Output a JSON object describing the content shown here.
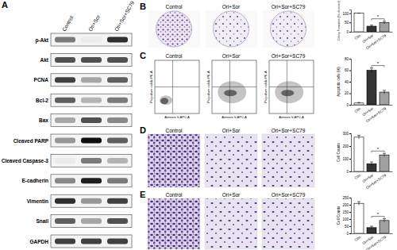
{
  "blot": {
    "label": "A",
    "columns": [
      "Control",
      "Ori+Sor",
      "Ori+Sor+SC79"
    ],
    "rows": [
      {
        "label": "p-Akt",
        "bands": [
          0.6,
          0.15,
          0.85
        ]
      },
      {
        "label": "Akt",
        "bands": [
          0.75,
          0.75,
          0.75
        ]
      },
      {
        "label": "PCNA",
        "bands": [
          0.8,
          0.45,
          0.7
        ]
      },
      {
        "label": "Bcl-2",
        "bands": [
          0.7,
          0.4,
          0.6
        ]
      },
      {
        "label": "Bax",
        "bands": [
          0.45,
          0.75,
          0.55
        ]
      },
      {
        "label": "Cleaved PARP",
        "bands": [
          0.5,
          0.95,
          0.7
        ]
      },
      {
        "label": "Cleaved Caspase-3",
        "bands": [
          0.15,
          0.6,
          0.4
        ]
      },
      {
        "label": "E-cadherin",
        "bands": [
          0.55,
          0.9,
          0.6
        ]
      },
      {
        "label": "Vimentin",
        "bands": [
          0.85,
          0.5,
          0.8
        ]
      },
      {
        "label": "Snail",
        "bands": [
          0.7,
          0.45,
          0.75
        ]
      },
      {
        "label": "GAPDH",
        "bands": [
          0.8,
          0.8,
          0.8
        ]
      }
    ]
  },
  "colony": {
    "label": "B",
    "titles": [
      "Control",
      "Ori+Sor",
      "Ori+Sor+SC79"
    ]
  },
  "flow": {
    "label": "C",
    "titles": [
      "Control",
      "Ori+Sor",
      "Ori+Sor+SC79"
    ],
    "x_label": "Annexin V-APC-A",
    "y_label": "Propidium iodide PE-A"
  },
  "migration": {
    "label": "D",
    "titles": [
      "Control",
      "Ori+Sor",
      "Ori+Sor+SC79"
    ]
  },
  "invasion": {
    "label": "E",
    "titles": [
      "Control",
      "Ori+Sor",
      "Ori+Sor+SC79"
    ]
  },
  "chart_data": [
    {
      "type": "bar",
      "y_label": "Colony Formation (% of control)",
      "categories": [
        "Con",
        "Ori+Sor",
        "Ori+Sor+SC79"
      ],
      "values": [
        100,
        30,
        50
      ],
      "errors": [
        0,
        6,
        7
      ],
      "colors": [
        "#ffffff",
        "#333333",
        "#a0a0a0"
      ],
      "ylim": [
        0,
        120
      ],
      "yticks": [
        0,
        50,
        100
      ],
      "annotation": "*"
    },
    {
      "type": "bar",
      "y_label": "Apoptotic cells (%)",
      "categories": [
        "Con",
        "Ori+Sor",
        "Ori+Sor+SC79"
      ],
      "values": [
        3,
        60,
        22
      ],
      "errors": [
        1,
        4,
        3
      ],
      "colors": [
        "#ffffff",
        "#333333",
        "#a0a0a0"
      ],
      "ylim": [
        0,
        80
      ],
      "yticks": [
        0,
        20,
        40,
        60,
        80
      ],
      "annotation": "*"
    },
    {
      "type": "bar",
      "y_label": "Cell Counts",
      "categories": [
        "Con",
        "Ori+Sor",
        "Ori+Sor+SC79"
      ],
      "values": [
        270,
        60,
        130
      ],
      "errors": [
        15,
        15,
        12
      ],
      "colors": [
        "#ffffff",
        "#333333",
        "#a0a0a0"
      ],
      "ylim": [
        0,
        300
      ],
      "yticks": [
        0,
        100,
        200,
        300
      ],
      "annotation": "*"
    },
    {
      "type": "bar",
      "y_label": "Cell Counts",
      "categories": [
        "Con",
        "Ori+Sor",
        "Ori+Sor+SC79"
      ],
      "values": [
        210,
        40,
        90
      ],
      "errors": [
        12,
        10,
        12
      ],
      "colors": [
        "#ffffff",
        "#333333",
        "#a0a0a0"
      ],
      "ylim": [
        0,
        250
      ],
      "yticks": [
        0,
        50,
        100,
        150,
        200,
        250
      ],
      "annotation": "*"
    }
  ]
}
